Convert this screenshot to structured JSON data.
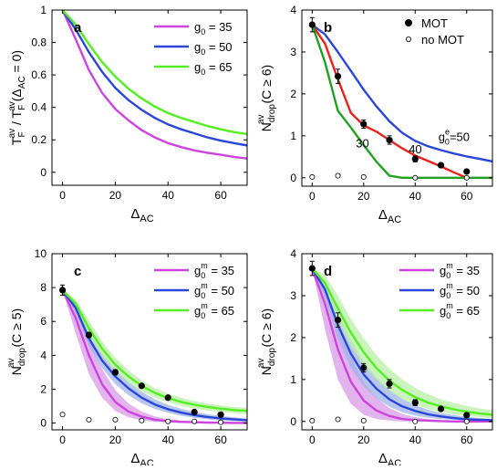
{
  "colors": {
    "purple": "#cc44dd",
    "blue": "#2a46d8",
    "green": "#55ee22",
    "red": "#e8221c",
    "dark_green": "#22a022",
    "purple_band": "#d99ae8",
    "blue_band": "#9fb3ea",
    "green_band": "#b8f0a4"
  },
  "chart_data": [
    {
      "id": "a",
      "panel_label": "a",
      "type": "line",
      "ylabel_main": "T",
      "ylabel_sub1": "F",
      "ylabel_sup1": "av",
      "ylabel_mid": " / T",
      "ylabel_sub2": "F",
      "ylabel_sup2": "av",
      "ylabel_tail": "(Δ",
      "ylabel_sub3": "AC",
      "ylabel_end": " = 0)",
      "xlabel_main": "Δ",
      "xlabel_sub": "AC",
      "xlim": [
        -4,
        70
      ],
      "ylim": [
        -0.08,
        1
      ],
      "xticks": [
        0,
        20,
        40,
        60
      ],
      "xtick_labels": [
        "0",
        "20",
        "40",
        "60"
      ],
      "yticks": [
        0,
        0.2,
        0.4,
        0.6,
        0.8,
        1
      ],
      "ytick_labels": [
        "0",
        "0.2",
        "0.4",
        "0.6",
        "0.8",
        "1"
      ],
      "legend_position": "top-right",
      "series": [
        {
          "name": "g0 = 35",
          "legend_main": "g",
          "legend_sub": "0",
          "legend_sup": "",
          "legend_tail": " = 35",
          "color": "purple",
          "x": [
            0,
            5,
            10,
            15,
            20,
            25,
            30,
            35,
            40,
            45,
            50,
            55,
            60,
            65,
            70
          ],
          "y": [
            1.0,
            0.82,
            0.63,
            0.49,
            0.39,
            0.32,
            0.26,
            0.215,
            0.18,
            0.155,
            0.135,
            0.12,
            0.108,
            0.095,
            0.085
          ]
        },
        {
          "name": "g0 = 50",
          "legend_main": "g",
          "legend_sub": "0",
          "legend_sup": "",
          "legend_tail": " = 50",
          "color": "blue",
          "x": [
            0,
            5,
            10,
            15,
            20,
            25,
            30,
            35,
            40,
            45,
            50,
            55,
            60,
            65,
            70
          ],
          "y": [
            1.0,
            0.88,
            0.74,
            0.62,
            0.52,
            0.445,
            0.385,
            0.335,
            0.295,
            0.265,
            0.24,
            0.215,
            0.195,
            0.18,
            0.165
          ]
        },
        {
          "name": "g0 = 65",
          "legend_main": "g",
          "legend_sub": "0",
          "legend_sup": "",
          "legend_tail": " = 65",
          "color": "green",
          "x": [
            0,
            5,
            10,
            15,
            20,
            25,
            30,
            35,
            40,
            45,
            50,
            55,
            60,
            65,
            70
          ],
          "y": [
            1.0,
            0.91,
            0.79,
            0.68,
            0.59,
            0.515,
            0.455,
            0.405,
            0.365,
            0.335,
            0.31,
            0.285,
            0.265,
            0.248,
            0.235
          ]
        }
      ]
    },
    {
      "id": "b",
      "panel_label": "b",
      "type": "line",
      "ylabel_main": "N",
      "ylabel_sub": "drop",
      "ylabel_sup": "av",
      "ylabel_tail": "(C ≥ 6)",
      "xlabel_main": "Δ",
      "xlabel_sub": "AC",
      "xlim": [
        -4,
        70
      ],
      "ylim": [
        -0.2,
        4
      ],
      "xticks": [
        0,
        20,
        40,
        60
      ],
      "xtick_labels": [
        "0",
        "20",
        "40",
        "60"
      ],
      "yticks": [
        0,
        1,
        2,
        3,
        4
      ],
      "ytick_labels": [
        "0",
        "1",
        "2",
        "3",
        "4"
      ],
      "legend_position": "top-right",
      "legend_entries": [
        {
          "label": "MOT",
          "marker": "filled"
        },
        {
          "label": "no MOT",
          "marker": "open"
        }
      ],
      "series": [
        {
          "name": "",
          "color": "blue",
          "x": [
            0,
            5,
            10,
            15,
            20,
            25,
            30,
            35,
            40,
            45,
            50,
            55,
            60,
            65,
            70
          ],
          "y": [
            3.65,
            3.42,
            3.0,
            2.55,
            2.1,
            1.7,
            1.35,
            1.07,
            0.88,
            0.75,
            0.66,
            0.58,
            0.51,
            0.45,
            0.39
          ]
        },
        {
          "name": "",
          "color": "red",
          "x": [
            0,
            5,
            10,
            15,
            20,
            25,
            30,
            35,
            40,
            45,
            50,
            55,
            60
          ],
          "y": [
            3.65,
            3.2,
            2.35,
            1.55,
            1.25,
            1.1,
            0.9,
            0.7,
            0.53,
            0.4,
            0.27,
            0.13,
            0
          ]
        },
        {
          "name": "",
          "color": "dark_green",
          "x": [
            0,
            5,
            10,
            15,
            20,
            25,
            30,
            35,
            40,
            50,
            60,
            70
          ],
          "y": [
            3.65,
            2.75,
            1.6,
            1.2,
            0.78,
            0.38,
            0.05,
            0,
            0,
            0,
            0,
            0
          ]
        }
      ],
      "curve_labels": [
        {
          "main": "g",
          "sub": "0",
          "sup": "e",
          "tail": "=50",
          "x": 49,
          "y": 0.88
        },
        {
          "main": "40",
          "x": 37.5,
          "y": 0.58
        },
        {
          "main": "30",
          "x": 17,
          "y": 0.72
        }
      ],
      "points_mot": {
        "x": [
          0,
          10,
          20,
          30,
          40,
          50,
          60
        ],
        "y": [
          3.65,
          2.42,
          1.28,
          0.9,
          0.45,
          0.3,
          0.15
        ],
        "err": [
          0.17,
          0.17,
          0.1,
          0.1,
          0.07,
          0.05,
          0.05
        ]
      },
      "points_nomot": {
        "x": [
          0,
          10,
          20,
          40,
          60
        ],
        "y": [
          0.02,
          0.05,
          0.02,
          0.0,
          0.0
        ]
      }
    },
    {
      "id": "c",
      "panel_label": "c",
      "type": "line",
      "ylabel_main": "N",
      "ylabel_sub": "drop",
      "ylabel_sup": "av",
      "ylabel_tail": "(C ≥ 5)",
      "xlabel_main": "Δ",
      "xlabel_sub": "AC",
      "xlim": [
        -4,
        70
      ],
      "ylim": [
        -0.4,
        10
      ],
      "xticks": [
        0,
        20,
        40,
        60
      ],
      "xtick_labels": [
        "0",
        "20",
        "40",
        "60"
      ],
      "yticks": [
        0,
        2,
        4,
        6,
        8,
        10
      ],
      "ytick_labels": [
        "0",
        "2",
        "4",
        "6",
        "8",
        "10"
      ],
      "legend_position": "top-right",
      "series": [
        {
          "name": "g0m = 35",
          "legend_main": "g",
          "legend_sub": "0",
          "legend_sup": "m",
          "legend_tail": " = 35",
          "color": "purple",
          "band": "purple_band",
          "x": [
            0,
            5,
            10,
            15,
            20,
            25,
            30,
            35,
            40,
            45,
            50,
            55,
            60,
            65,
            70
          ],
          "y": [
            7.85,
            6.2,
            4.0,
            2.3,
            1.25,
            0.68,
            0.38,
            0.2,
            0.12,
            0.07,
            0.05,
            0.03,
            0.02,
            0.01,
            0.01
          ],
          "lo": [
            7.85,
            5.3,
            2.9,
            1.5,
            0.72,
            0.34,
            0.16,
            0.08,
            0.04,
            0.02,
            0.01,
            0.0,
            0.0,
            0.0,
            0.0
          ],
          "hi": [
            7.85,
            6.9,
            5.0,
            3.2,
            1.95,
            1.15,
            0.68,
            0.4,
            0.24,
            0.15,
            0.1,
            0.07,
            0.05,
            0.03,
            0.02
          ]
        },
        {
          "name": "g0m = 50",
          "legend_main": "g",
          "legend_sub": "0",
          "legend_sup": "m",
          "legend_tail": " = 50",
          "color": "blue",
          "band": "blue_band",
          "x": [
            0,
            5,
            10,
            15,
            20,
            25,
            30,
            35,
            40,
            45,
            50,
            55,
            60,
            65,
            70
          ],
          "y": [
            7.85,
            6.8,
            5.0,
            3.7,
            2.75,
            2.05,
            1.5,
            1.1,
            0.82,
            0.62,
            0.47,
            0.36,
            0.28,
            0.22,
            0.17
          ],
          "lo": [
            7.85,
            6.5,
            4.55,
            3.25,
            2.3,
            1.65,
            1.17,
            0.84,
            0.6,
            0.43,
            0.31,
            0.22,
            0.16,
            0.12,
            0.09
          ],
          "hi": [
            7.85,
            7.1,
            5.45,
            4.15,
            3.2,
            2.45,
            1.85,
            1.4,
            1.08,
            0.84,
            0.66,
            0.52,
            0.42,
            0.34,
            0.27
          ]
        },
        {
          "name": "g0m = 65",
          "legend_main": "g",
          "legend_sub": "0",
          "legend_sup": "m",
          "legend_tail": " = 65",
          "color": "green",
          "band": "green_band",
          "x": [
            0,
            5,
            10,
            15,
            20,
            25,
            30,
            35,
            40,
            45,
            50,
            55,
            60,
            65,
            70
          ],
          "y": [
            7.85,
            7.05,
            5.6,
            4.4,
            3.45,
            2.75,
            2.2,
            1.78,
            1.48,
            1.25,
            1.08,
            0.95,
            0.85,
            0.77,
            0.72
          ],
          "lo": [
            7.85,
            6.8,
            5.15,
            3.95,
            3.05,
            2.38,
            1.88,
            1.5,
            1.22,
            1.01,
            0.86,
            0.75,
            0.66,
            0.59,
            0.54
          ],
          "hi": [
            7.85,
            7.3,
            6.05,
            4.85,
            3.85,
            3.12,
            2.52,
            2.06,
            1.74,
            1.49,
            1.3,
            1.15,
            1.04,
            0.95,
            0.9
          ]
        }
      ],
      "points_mot": {
        "x": [
          0,
          10,
          20,
          30,
          40,
          50,
          60
        ],
        "y": [
          7.85,
          5.2,
          3.0,
          2.2,
          1.5,
          0.65,
          0.5
        ],
        "err": [
          0.3,
          0.15,
          0.15,
          0.1,
          0.1,
          0.1,
          0.1
        ]
      },
      "points_nomot": {
        "x": [
          0,
          10,
          20,
          30,
          40,
          50,
          60
        ],
        "y": [
          0.5,
          0.2,
          0.2,
          0.15,
          0.1,
          0.1,
          0.05
        ]
      }
    },
    {
      "id": "d",
      "panel_label": "d",
      "type": "line",
      "ylabel_main": "N",
      "ylabel_sub": "drop",
      "ylabel_sup": "av",
      "ylabel_tail": "(C ≥ 6)",
      "xlabel_main": "Δ",
      "xlabel_sub": "AC",
      "xlim": [
        -4,
        70
      ],
      "ylim": [
        -0.2,
        4
      ],
      "xticks": [
        0,
        20,
        40,
        60
      ],
      "xtick_labels": [
        "0",
        "20",
        "40",
        "60"
      ],
      "yticks": [
        0,
        1,
        2,
        3,
        4
      ],
      "ytick_labels": [
        "0",
        "1",
        "2",
        "3",
        "4"
      ],
      "legend_position": "top-right",
      "series": [
        {
          "name": "g0m = 35",
          "legend_main": "g",
          "legend_sub": "0",
          "legend_sup": "m",
          "legend_tail": " = 35",
          "color": "purple",
          "band": "purple_band",
          "x": [
            0,
            5,
            10,
            15,
            20,
            25,
            30,
            35,
            40,
            45,
            50,
            55,
            60,
            65,
            70
          ],
          "y": [
            3.65,
            2.8,
            1.72,
            0.95,
            0.5,
            0.26,
            0.13,
            0.06,
            0.03,
            0.02,
            0.01,
            0.0,
            0.0,
            0.0,
            0.0
          ],
          "lo": [
            3.65,
            2.2,
            1.0,
            0.42,
            0.16,
            0.06,
            0.02,
            0.0,
            0.0,
            0.0,
            0.0,
            0.0,
            0.0,
            0.0,
            0.0
          ],
          "hi": [
            3.65,
            3.2,
            2.45,
            1.55,
            0.95,
            0.56,
            0.32,
            0.18,
            0.1,
            0.06,
            0.03,
            0.02,
            0.01,
            0.0,
            0.0
          ]
        },
        {
          "name": "g0m = 50",
          "legend_main": "g",
          "legend_sub": "0",
          "legend_sup": "m",
          "legend_tail": " = 50",
          "color": "blue",
          "band": "blue_band",
          "x": [
            0,
            5,
            10,
            15,
            20,
            25,
            30,
            35,
            40,
            45,
            50,
            55,
            60,
            65,
            70
          ],
          "y": [
            3.65,
            3.15,
            2.3,
            1.62,
            1.12,
            0.78,
            0.53,
            0.36,
            0.25,
            0.17,
            0.12,
            0.08,
            0.05,
            0.04,
            0.03
          ],
          "lo": [
            3.65,
            2.95,
            1.95,
            1.28,
            0.84,
            0.55,
            0.35,
            0.22,
            0.14,
            0.09,
            0.06,
            0.04,
            0.02,
            0.01,
            0.01
          ],
          "hi": [
            3.65,
            3.35,
            2.6,
            1.95,
            1.42,
            1.04,
            0.75,
            0.54,
            0.39,
            0.28,
            0.2,
            0.15,
            0.11,
            0.08,
            0.06
          ]
        },
        {
          "name": "g0m = 65",
          "legend_main": "g",
          "legend_sub": "0",
          "legend_sup": "m",
          "legend_tail": " = 65",
          "color": "green",
          "band": "green_band",
          "x": [
            0,
            5,
            10,
            15,
            20,
            25,
            30,
            35,
            40,
            45,
            50,
            55,
            60,
            65,
            70
          ],
          "y": [
            3.65,
            3.3,
            2.7,
            2.12,
            1.65,
            1.27,
            0.97,
            0.75,
            0.58,
            0.45,
            0.36,
            0.29,
            0.23,
            0.19,
            0.16
          ],
          "lo": [
            3.65,
            3.1,
            2.4,
            1.8,
            1.34,
            0.99,
            0.73,
            0.54,
            0.4,
            0.3,
            0.22,
            0.17,
            0.13,
            0.1,
            0.08
          ],
          "hi": [
            3.65,
            3.5,
            3.0,
            2.45,
            1.98,
            1.58,
            1.26,
            1.0,
            0.8,
            0.65,
            0.53,
            0.44,
            0.37,
            0.31,
            0.27
          ]
        }
      ],
      "points_mot": {
        "x": [
          0,
          10,
          20,
          30,
          40,
          50,
          60
        ],
        "y": [
          3.65,
          2.42,
          1.28,
          0.9,
          0.45,
          0.3,
          0.15
        ],
        "err": [
          0.17,
          0.17,
          0.1,
          0.1,
          0.07,
          0.05,
          0.05
        ]
      },
      "points_nomot": {
        "x": [
          0,
          10,
          20,
          40,
          60
        ],
        "y": [
          0.02,
          0.05,
          0.02,
          0.0,
          0.0
        ]
      }
    }
  ]
}
